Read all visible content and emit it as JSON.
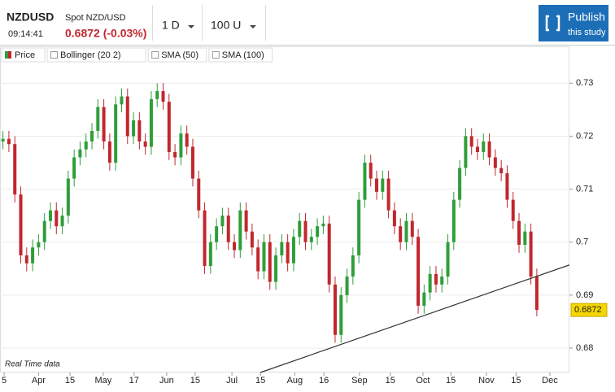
{
  "header": {
    "symbol": "NZDUSD",
    "time": "09:14:41",
    "name": "Spot NZD/USD",
    "quote": "0.6872 (-0.03%)"
  },
  "controls": {
    "interval": "1 D",
    "range": "100 U"
  },
  "publish": {
    "title": "Publish",
    "subtitle": "this study"
  },
  "chart_data": {
    "type": "candlestick",
    "legend": [
      "Price",
      "Bollinger (20 2)",
      "SMA (50)",
      "SMA (100)"
    ],
    "annotation": "Real Time data",
    "up_color": "#2f9e3a",
    "down_color": "#c1272d",
    "grid": true,
    "xlim": [
      -0.5,
      95.5
    ],
    "xticks": [
      {
        "value": 0.2,
        "label": "5"
      },
      {
        "value": 6,
        "label": "Apr"
      },
      {
        "value": 11.3,
        "label": "15"
      },
      {
        "value": 16.9,
        "label": "May"
      },
      {
        "value": 22.1,
        "label": "17"
      },
      {
        "value": 27.6,
        "label": "Jun"
      },
      {
        "value": 32.4,
        "label": "15"
      },
      {
        "value": 38.6,
        "label": "Jul"
      },
      {
        "value": 43.4,
        "label": "15"
      },
      {
        "value": 49.2,
        "label": "Aug"
      },
      {
        "value": 54.1,
        "label": "16"
      },
      {
        "value": 60.1,
        "label": "Sep"
      },
      {
        "value": 65.3,
        "label": "15"
      },
      {
        "value": 70.8,
        "label": "Oct"
      },
      {
        "value": 75.5,
        "label": "15"
      },
      {
        "value": 81.5,
        "label": "Nov"
      },
      {
        "value": 86.5,
        "label": "15"
      },
      {
        "value": 92.2,
        "label": "Dec"
      }
    ],
    "ylim": [
      0.6754,
      0.7368
    ],
    "yticks": [
      0.73,
      0.72,
      0.71,
      0.7,
      0.69,
      0.68
    ],
    "last_price": 0.6872,
    "trendline": {
      "x": [
        43.4,
        95.5
      ],
      "y": [
        0.6754,
        0.6957
      ]
    },
    "candles": {
      "open": [
        0.719,
        0.7195,
        0.7185,
        0.709,
        0.6975,
        0.696,
        0.699,
        0.7,
        0.704,
        0.706,
        0.703,
        0.705,
        0.712,
        0.716,
        0.7175,
        0.719,
        0.721,
        0.7255,
        0.719,
        0.715,
        0.726,
        0.7275,
        0.72,
        0.723,
        0.719,
        0.718,
        0.727,
        0.7285,
        0.7265,
        0.717,
        0.716,
        0.7205,
        0.718,
        0.712,
        0.706,
        0.6955,
        0.7,
        0.703,
        0.705,
        0.7,
        0.6985,
        0.706,
        0.702,
        0.699,
        0.6945,
        0.7,
        0.6925,
        0.6975,
        0.7,
        0.696,
        0.701,
        0.704,
        0.7,
        0.701,
        0.703,
        0.7035,
        0.692,
        0.6825,
        0.69,
        0.6935,
        0.6975,
        0.708,
        0.715,
        0.712,
        0.7095,
        0.712,
        0.706,
        0.703,
        0.7,
        0.704,
        0.701,
        0.688,
        0.6905,
        0.694,
        0.692,
        0.6935,
        0.7,
        0.708,
        0.714,
        0.72,
        0.718,
        0.717,
        0.719,
        0.716,
        0.714,
        0.713,
        0.708,
        0.704,
        0.6995,
        0.702,
        0.6935
      ],
      "high": [
        0.721,
        0.721,
        0.72,
        0.7105,
        0.699,
        0.7005,
        0.7015,
        0.7055,
        0.7075,
        0.7075,
        0.7065,
        0.7135,
        0.7175,
        0.719,
        0.7205,
        0.7225,
        0.727,
        0.727,
        0.7205,
        0.7275,
        0.729,
        0.729,
        0.7245,
        0.7245,
        0.7205,
        0.7285,
        0.73,
        0.73,
        0.728,
        0.7185,
        0.722,
        0.722,
        0.7195,
        0.7135,
        0.7075,
        0.7015,
        0.7045,
        0.7065,
        0.7065,
        0.7015,
        0.7075,
        0.7075,
        0.7035,
        0.7005,
        0.7015,
        0.7015,
        0.699,
        0.7015,
        0.7015,
        0.7025,
        0.7055,
        0.7055,
        0.7025,
        0.7045,
        0.705,
        0.705,
        0.6935,
        0.6915,
        0.695,
        0.699,
        0.7095,
        0.7165,
        0.7165,
        0.7135,
        0.7135,
        0.7135,
        0.7075,
        0.7045,
        0.7055,
        0.7055,
        0.7025,
        0.692,
        0.6955,
        0.6955,
        0.695,
        0.7015,
        0.7095,
        0.7155,
        0.7215,
        0.7215,
        0.7195,
        0.7205,
        0.7205,
        0.7175,
        0.7155,
        0.7145,
        0.7095,
        0.7055,
        0.7035,
        0.7035,
        0.695
      ],
      "low": [
        0.7175,
        0.717,
        0.7075,
        0.696,
        0.6945,
        0.6945,
        0.6975,
        0.6985,
        0.7025,
        0.7015,
        0.7015,
        0.7035,
        0.7105,
        0.7145,
        0.716,
        0.7175,
        0.7195,
        0.7175,
        0.7135,
        0.7135,
        0.7245,
        0.7185,
        0.7185,
        0.7175,
        0.7165,
        0.7165,
        0.7255,
        0.725,
        0.7155,
        0.7145,
        0.7145,
        0.7165,
        0.7105,
        0.7045,
        0.694,
        0.694,
        0.6985,
        0.7015,
        0.6985,
        0.697,
        0.697,
        0.7005,
        0.6975,
        0.693,
        0.693,
        0.691,
        0.691,
        0.696,
        0.6945,
        0.6945,
        0.6995,
        0.6985,
        0.6985,
        0.6995,
        0.7015,
        0.6905,
        0.681,
        0.681,
        0.6885,
        0.692,
        0.696,
        0.7065,
        0.7105,
        0.708,
        0.708,
        0.7045,
        0.7015,
        0.6985,
        0.6985,
        0.6995,
        0.6865,
        0.6865,
        0.689,
        0.6905,
        0.6905,
        0.692,
        0.6985,
        0.7065,
        0.7125,
        0.7165,
        0.7155,
        0.7155,
        0.7145,
        0.7125,
        0.7115,
        0.7065,
        0.7025,
        0.698,
        0.698,
        0.692,
        0.686
      ],
      "close": [
        0.7195,
        0.7185,
        0.709,
        0.6975,
        0.696,
        0.699,
        0.7,
        0.704,
        0.706,
        0.703,
        0.705,
        0.712,
        0.716,
        0.7175,
        0.719,
        0.721,
        0.7255,
        0.719,
        0.715,
        0.726,
        0.7275,
        0.72,
        0.723,
        0.719,
        0.718,
        0.727,
        0.7285,
        0.7265,
        0.717,
        0.716,
        0.7205,
        0.718,
        0.712,
        0.706,
        0.6955,
        0.7,
        0.703,
        0.705,
        0.7,
        0.6985,
        0.706,
        0.702,
        0.699,
        0.6945,
        0.7,
        0.6925,
        0.6975,
        0.7,
        0.696,
        0.701,
        0.704,
        0.7,
        0.701,
        0.703,
        0.7035,
        0.692,
        0.6825,
        0.69,
        0.6935,
        0.6975,
        0.708,
        0.715,
        0.712,
        0.7095,
        0.712,
        0.706,
        0.703,
        0.7,
        0.704,
        0.701,
        0.688,
        0.6905,
        0.694,
        0.692,
        0.6935,
        0.7,
        0.708,
        0.714,
        0.72,
        0.718,
        0.717,
        0.719,
        0.716,
        0.714,
        0.713,
        0.708,
        0.704,
        0.6995,
        0.702,
        0.6935,
        0.6872
      ]
    }
  }
}
